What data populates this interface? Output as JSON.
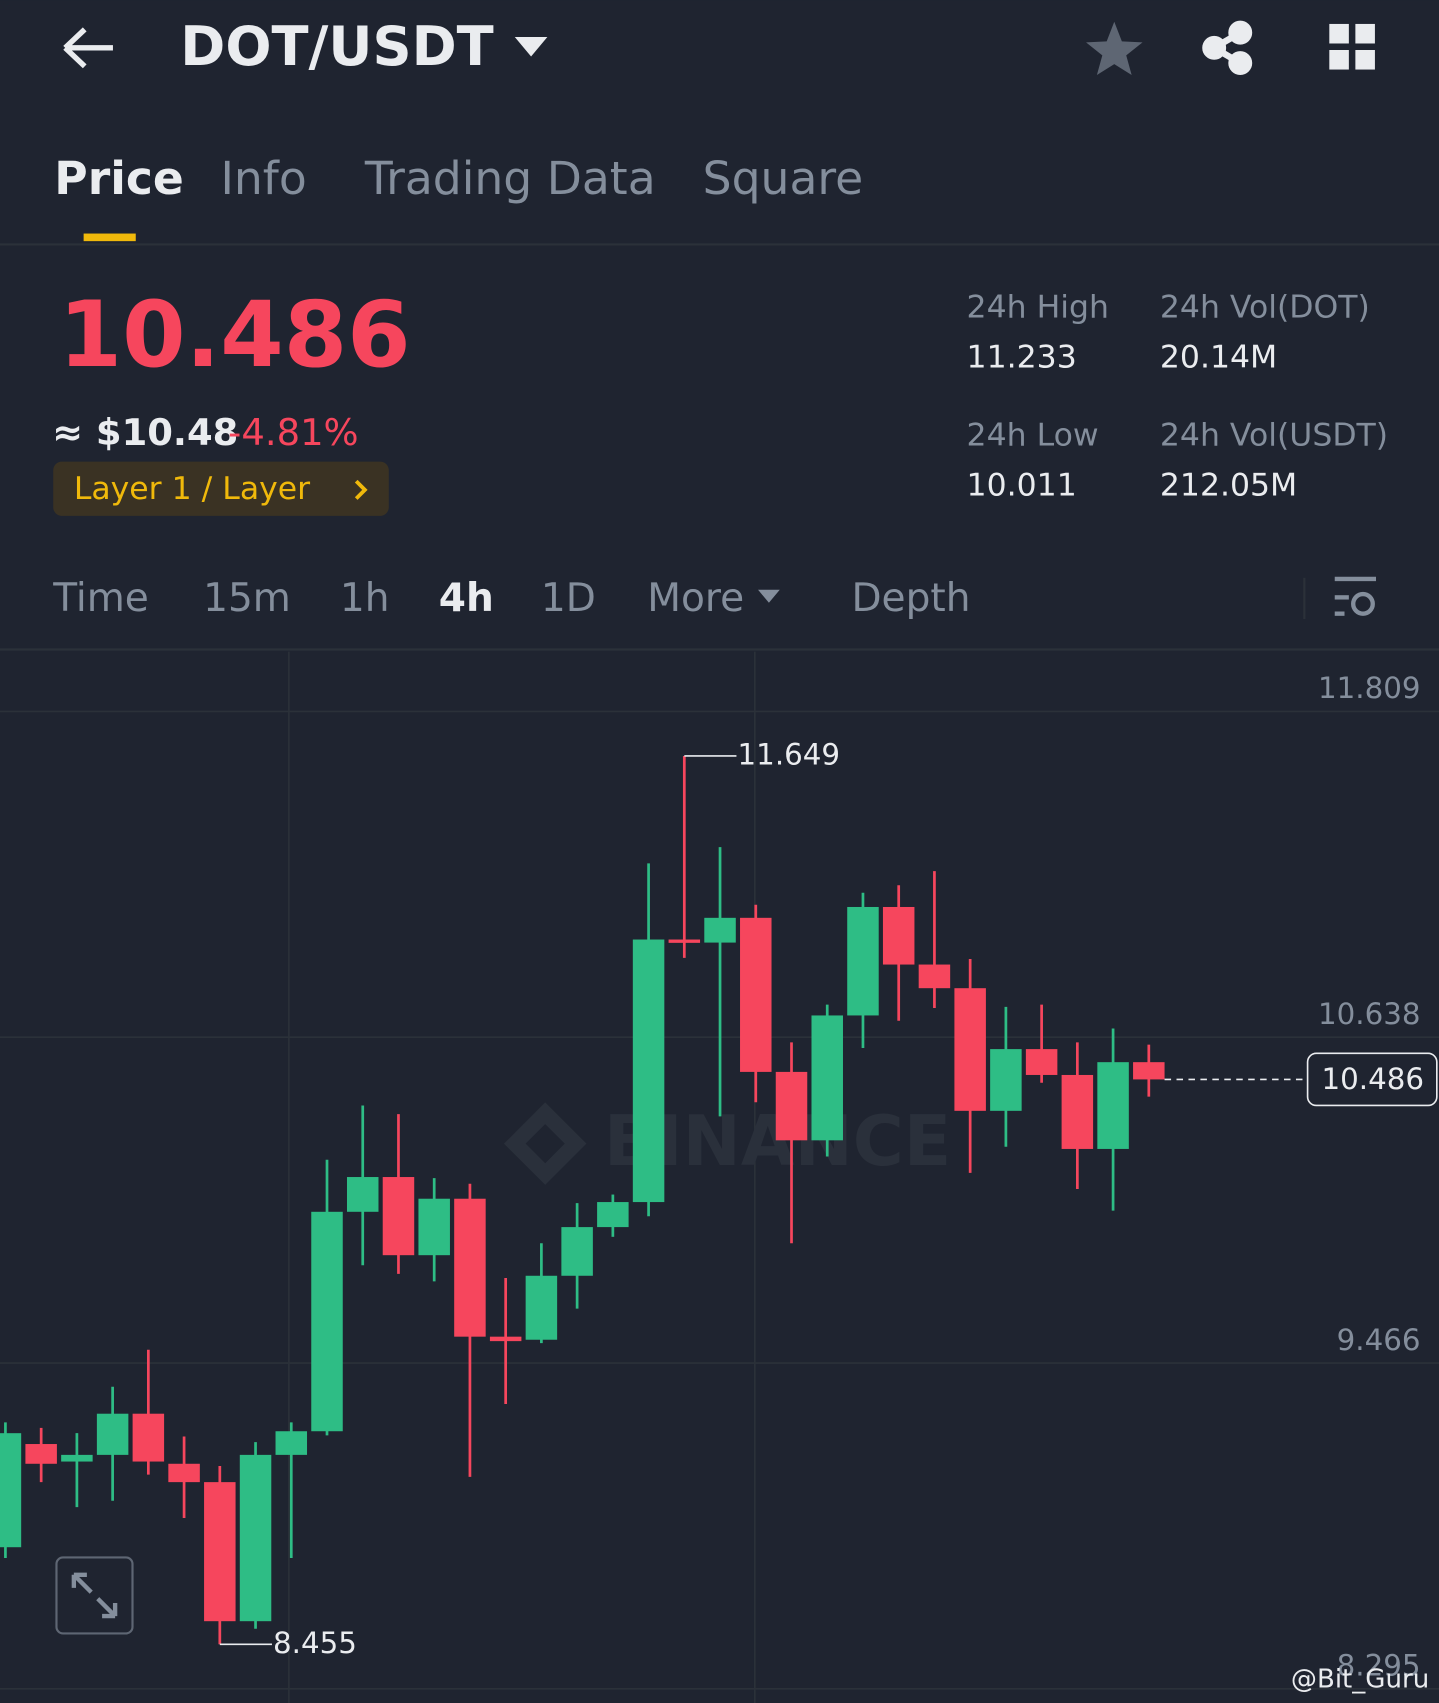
{
  "header": {
    "pair": "DOT/USDT"
  },
  "tabs": [
    "Price",
    "Info",
    "Trading Data",
    "Square"
  ],
  "ticker": {
    "price": "10.486",
    "usd": "≈ $10.48",
    "change": "-4.81%",
    "tag": "Layer 1 / Layer",
    "stats": [
      {
        "label": "24h High",
        "value": "11.233"
      },
      {
        "label": "24h Vol(DOT)",
        "value": "20.14M"
      },
      {
        "label": "24h Low",
        "value": "10.011"
      },
      {
        "label": "24h Vol(USDT)",
        "value": "212.05M"
      }
    ]
  },
  "intervals": [
    "Time",
    "15m",
    "1h",
    "4h",
    "1D",
    "More",
    "Depth"
  ],
  "watermark": "BINANCE",
  "credit": "@Bit_Guru",
  "chart_data": {
    "type": "candlestick",
    "open": [
      8.804,
      9.175,
      9.112,
      9.136,
      9.284,
      9.104,
      9.038,
      8.538,
      9.136,
      9.221,
      10.01,
      10.135,
      9.854,
      10.057,
      9.561,
      9.55,
      9.78,
      9.955,
      10.045,
      10.989,
      10.978,
      11.067,
      10.513,
      10.267,
      10.716,
      11.106,
      10.899,
      10.814,
      10.373,
      10.595,
      10.502,
      10.236,
      10.548
    ],
    "high": [
      9.253,
      9.233,
      9.214,
      9.381,
      9.514,
      9.202,
      9.096,
      9.182,
      9.253,
      10.197,
      10.392,
      10.361,
      10.131,
      10.111,
      9.772,
      9.897,
      10.041,
      10.072,
      11.263,
      11.649,
      11.321,
      11.114,
      10.619,
      10.755,
      11.157,
      11.184,
      11.235,
      10.919,
      10.747,
      10.755,
      10.619,
      10.669,
      10.611
    ],
    "low": [
      8.765,
      9.038,
      8.948,
      8.971,
      9.065,
      8.909,
      8.455,
      8.511,
      8.765,
      9.206,
      9.818,
      9.787,
      9.76,
      9.057,
      9.319,
      9.538,
      9.662,
      9.92,
      9.994,
      10.923,
      10.353,
      10.404,
      9.897,
      10.209,
      10.599,
      10.697,
      10.743,
      10.15,
      10.244,
      10.474,
      10.092,
      10.014,
      10.424
    ],
    "close": [
      9.214,
      9.104,
      9.136,
      9.284,
      9.112,
      9.038,
      8.538,
      9.136,
      9.221,
      10.01,
      10.135,
      9.854,
      10.057,
      9.561,
      9.545,
      9.78,
      9.955,
      10.045,
      10.989,
      10.977,
      11.067,
      10.513,
      10.267,
      10.716,
      11.106,
      10.899,
      10.814,
      10.373,
      10.595,
      10.502,
      10.236,
      10.548,
      10.486
    ],
    "up_color": "#2ebd85",
    "down_color": "#f6465d",
    "ylim": [
      8.244,
      12.024
    ],
    "yticks": [
      11.809,
      10.638,
      9.466,
      8.295
    ],
    "last_price": 10.486,
    "annotations": [
      {
        "index": 19,
        "value": 11.649,
        "label": "11.649"
      },
      {
        "index": 6,
        "value": 8.455,
        "label": "8.455"
      }
    ]
  }
}
